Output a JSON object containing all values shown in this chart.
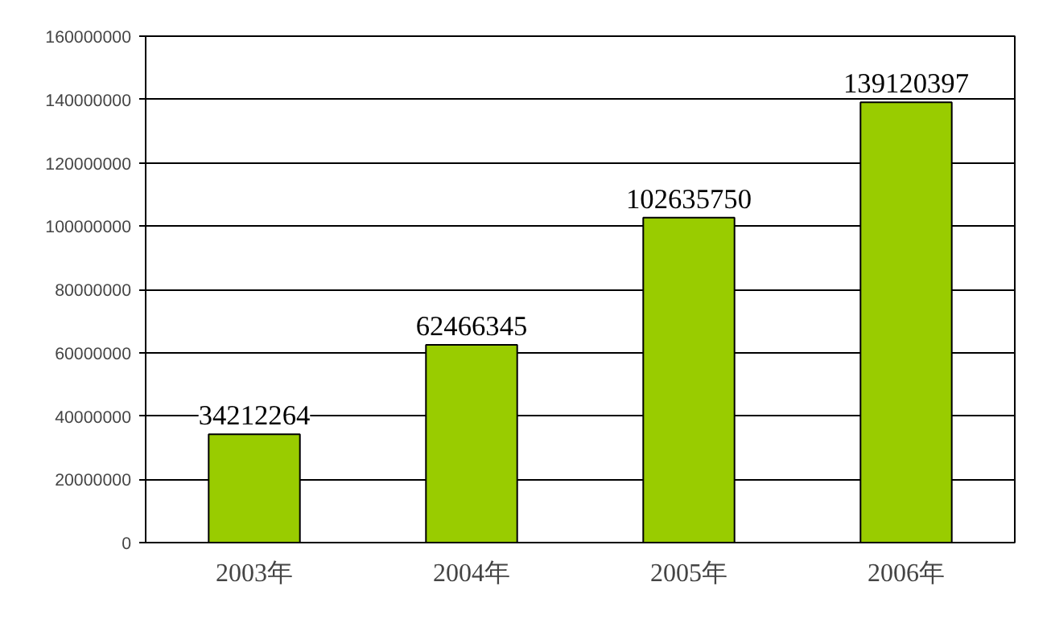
{
  "chart_data": {
    "type": "bar",
    "categories": [
      "2003年",
      "2004年",
      "2005年",
      "2006年"
    ],
    "values": [
      34212264,
      62466345,
      102635750,
      139120397
    ],
    "color": "#99cc00",
    "data_labels": true,
    "grid": "y",
    "legend": false,
    "ylim": [
      0,
      160000000
    ],
    "yticks": [
      0,
      20000000,
      40000000,
      60000000,
      80000000,
      100000000,
      120000000,
      140000000,
      160000000
    ]
  }
}
